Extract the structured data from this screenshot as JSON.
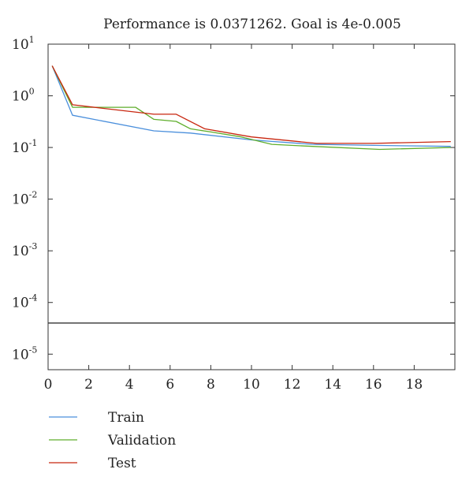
{
  "chart_data": {
    "type": "line",
    "title": "Performance is 0.0371262. Goal is 4e-0.005",
    "xlabel": "",
    "ylabel": "",
    "y_scale": "log",
    "xlim": [
      0,
      20
    ],
    "ylim": [
      5e-06,
      10
    ],
    "x_ticks": [
      {
        "value": 0,
        "label": "0"
      },
      {
        "value": 2,
        "label": "2"
      },
      {
        "value": 4,
        "label": "4"
      },
      {
        "value": 6,
        "label": "6"
      },
      {
        "value": 8,
        "label": "8"
      },
      {
        "value": 10,
        "label": "10"
      },
      {
        "value": 12,
        "label": "12"
      },
      {
        "value": 14,
        "label": "14"
      },
      {
        "value": 16,
        "label": "16"
      },
      {
        "value": 18,
        "label": "18"
      }
    ],
    "y_ticks": [
      {
        "value": 10,
        "base": "10",
        "exp": "1"
      },
      {
        "value": 1,
        "base": "10",
        "exp": "0"
      },
      {
        "value": 0.1,
        "base": "10",
        "exp": "-1"
      },
      {
        "value": 0.01,
        "base": "10",
        "exp": "-2"
      },
      {
        "value": 0.001,
        "base": "10",
        "exp": "-3"
      },
      {
        "value": 0.0001,
        "base": "10",
        "exp": "-4"
      },
      {
        "value": 1e-05,
        "base": "10",
        "exp": "-5"
      }
    ],
    "grid": false,
    "legend_position": "bottom-left below plot",
    "series": [
      {
        "name": "Train",
        "color": "#4a8fdc",
        "x": [
          0.2,
          1.2,
          5.2,
          7,
          10,
          13,
          16,
          19.8
        ],
        "y": [
          3.8,
          0.42,
          0.21,
          0.19,
          0.14,
          0.115,
          0.11,
          0.105
        ]
      },
      {
        "name": "Validation",
        "color": "#5fae2c",
        "x": [
          0.2,
          1.2,
          4.3,
          5.2,
          6.3,
          7,
          8,
          9.5,
          11,
          13,
          16.3,
          19.8
        ],
        "y": [
          3.8,
          0.6,
          0.6,
          0.35,
          0.32,
          0.23,
          0.2,
          0.16,
          0.115,
          0.105,
          0.092,
          0.1
        ]
      },
      {
        "name": "Test",
        "color": "#c8260f",
        "x": [
          0.2,
          1.2,
          5.2,
          6.3,
          7.7,
          10,
          13.2,
          16,
          19.8
        ],
        "y": [
          3.8,
          0.67,
          0.44,
          0.44,
          0.23,
          0.16,
          0.12,
          0.12,
          0.13
        ]
      }
    ],
    "goal": {
      "value": 4e-05,
      "color": "#333333"
    }
  }
}
